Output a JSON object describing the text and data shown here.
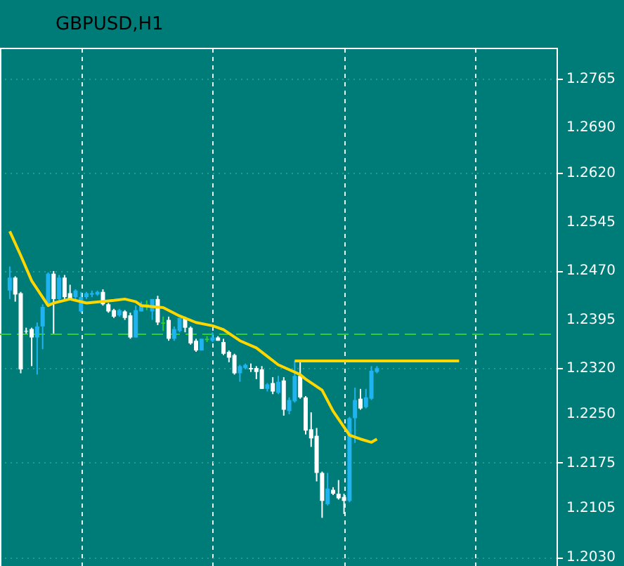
{
  "chart_data": {
    "type": "candlestick",
    "title": "GBPUSD,H1",
    "categories": [
      null,
      null,
      null,
      null,
      null,
      null,
      null,
      null,
      null,
      null,
      null,
      null,
      null,
      null,
      null,
      null,
      null,
      null,
      null,
      null,
      null,
      null,
      null,
      null,
      null,
      null,
      null,
      null,
      null,
      null,
      null,
      null,
      null,
      null,
      null,
      null,
      null,
      null,
      null,
      null,
      null,
      null,
      null,
      null,
      null,
      null,
      null,
      null,
      null,
      null,
      null,
      null,
      null,
      null,
      null,
      null,
      null,
      null,
      null,
      null,
      null,
      null,
      null,
      null,
      null,
      null,
      null,
      null,
      null,
      null,
      null,
      null,
      null,
      null,
      null,
      null,
      null,
      null,
      null,
      null,
      null,
      null,
      null,
      null,
      null,
      null,
      null,
      null,
      null,
      null,
      null,
      null,
      null,
      null,
      null,
      null,
      null,
      null,
      null
    ],
    "ylim": [
      1.2016,
      1.2812
    ],
    "yticks": [
      1.2765,
      {
        "value": 1.269,
        "label": "1.2690"
      },
      {
        "value": 1.262,
        "label": "1.2620"
      },
      1.2545,
      {
        "value": 1.247,
        "label": "1.2470"
      },
      1.2395,
      {
        "value": 1.232,
        "label": "1.2320"
      },
      {
        "value": 1.225,
        "label": "1.2250"
      },
      1.2175,
      1.2105,
      {
        "value": 1.203,
        "label": "1.2030"
      }
    ],
    "grid": true,
    "tick_labels": "y",
    "ref_lines": [
      {
        "axis": "y",
        "value": 1.2372,
        "color": "#32cd32",
        "line_style": "dashed"
      }
    ],
    "series": [
      {
        "ohlc": [
          [
            1.2439,
            1.2476,
            1.2426,
            1.2459
          ],
          [
            1.2459,
            1.2461,
            1.2422,
            1.2433
          ],
          [
            1.2435,
            1.2437,
            1.2312,
            1.2318
          ],
          [
            1.2377,
            1.2382,
            1.2373,
            1.2376
          ],
          [
            1.238,
            1.2382,
            1.2323,
            1.2367
          ],
          [
            1.2367,
            1.239,
            1.231,
            1.2384
          ],
          [
            1.2384,
            1.2418,
            1.2349,
            1.2414
          ],
          [
            1.2416,
            1.2467,
            1.2414,
            1.2465
          ],
          [
            1.2465,
            1.2469,
            1.2373,
            1.2426
          ],
          [
            1.2426,
            1.2463,
            1.2424,
            1.2459
          ],
          [
            1.2459,
            1.2463,
            1.2426,
            1.2429
          ],
          [
            1.2435,
            1.2448,
            1.2424,
            1.2426
          ],
          [
            1.2429,
            1.2441,
            1.2426,
            1.2439
          ],
          [
            1.2407,
            1.2437,
            1.2405,
            1.2429
          ],
          [
            1.2429,
            1.2437,
            1.2426,
            1.2435
          ],
          [
            1.2433,
            1.2439,
            1.2429,
            1.2435
          ],
          [
            1.2433,
            1.2439,
            1.2431,
            1.2437
          ],
          [
            1.2437,
            1.2441,
            1.2416,
            1.2418
          ],
          [
            1.2418,
            1.242,
            1.2405,
            1.2407
          ],
          [
            1.2409,
            1.2411,
            1.2397,
            1.2399
          ],
          [
            1.2401,
            1.2411,
            1.2399,
            1.2409
          ],
          [
            1.2407,
            1.2409,
            1.2394,
            1.2397
          ],
          [
            1.2401,
            1.2405,
            1.2365,
            1.2367
          ],
          [
            1.2367,
            1.2416,
            1.2367,
            1.2409
          ],
          [
            1.2407,
            1.2422,
            1.2407,
            1.2418
          ],
          [
            1.2418,
            1.2424,
            1.2409,
            1.2416
          ],
          [
            1.2407,
            1.2426,
            1.2394,
            1.2426
          ],
          [
            1.2426,
            1.2431,
            1.2386,
            1.239
          ],
          [
            1.239,
            1.2399,
            1.2377,
            1.2388
          ],
          [
            1.2394,
            1.2399,
            1.2362,
            1.2365
          ],
          [
            1.2365,
            1.2384,
            1.2362,
            1.238
          ],
          [
            1.2377,
            1.2397,
            1.2375,
            1.2397
          ],
          [
            1.2397,
            1.2399,
            1.2375,
            1.2382
          ],
          [
            1.2382,
            1.2384,
            1.2356,
            1.2358
          ],
          [
            1.2362,
            1.2365,
            1.2345,
            1.2347
          ],
          [
            1.2347,
            1.2365,
            1.2347,
            1.2365
          ],
          [
            1.2365,
            1.2369,
            1.236,
            1.2363
          ],
          [
            1.2362,
            1.2375,
            1.236,
            1.2367
          ],
          [
            1.2367,
            1.2369,
            1.2362,
            1.2362
          ],
          [
            1.236,
            1.2365,
            1.234,
            1.2342
          ],
          [
            1.2345,
            1.2347,
            1.2329,
            1.2336
          ],
          [
            1.234,
            1.2342,
            1.231,
            1.2312
          ],
          [
            1.2312,
            1.2325,
            1.2299,
            1.2323
          ],
          [
            1.232,
            1.2327,
            1.2318,
            1.2325
          ],
          [
            1.232,
            1.2327,
            1.2314,
            1.2318
          ],
          [
            1.232,
            1.2323,
            1.2303,
            1.2314
          ],
          [
            1.2318,
            1.2323,
            1.2288,
            1.2288
          ],
          [
            1.2288,
            1.2297,
            1.2284,
            1.2295
          ],
          [
            1.2297,
            1.2306,
            1.228,
            1.2284
          ],
          [
            1.2282,
            1.2308,
            1.228,
            1.2299
          ],
          [
            1.2301,
            1.2306,
            1.2247,
            1.2256
          ],
          [
            1.2254,
            1.2275,
            1.2249,
            1.2271
          ],
          [
            1.2269,
            1.2331,
            1.2267,
            1.2308
          ],
          [
            1.2308,
            1.2331,
            1.2273,
            1.2275
          ],
          [
            1.2275,
            1.2277,
            1.2218,
            1.2224
          ],
          [
            1.2226,
            1.2252,
            1.2199,
            1.2212
          ],
          [
            1.2216,
            1.2228,
            1.2146,
            1.2159
          ],
          [
            1.2159,
            1.2161,
            1.209,
            1.2116
          ],
          [
            1.2111,
            1.2159,
            1.2109,
            1.2135
          ],
          [
            1.2133,
            1.2137,
            1.2125,
            1.2127
          ],
          [
            1.2127,
            1.2148,
            1.2118,
            1.212
          ],
          [
            1.2122,
            1.2127,
            1.2096,
            1.2116
          ],
          [
            1.2116,
            1.2245,
            1.2114,
            1.2243
          ],
          [
            1.2243,
            1.229,
            1.2205,
            1.2271
          ],
          [
            1.2273,
            1.2288,
            1.2256,
            1.2258
          ],
          [
            1.226,
            1.2288,
            1.2258,
            1.2275
          ],
          [
            1.2273,
            1.2323,
            1.2271,
            1.2316
          ],
          [
            1.2314,
            1.2323,
            1.2312,
            1.232
          ],
          null,
          null,
          null,
          null,
          null,
          null,
          null,
          null,
          null,
          null,
          null,
          null,
          null,
          null,
          null,
          null,
          null,
          null,
          null,
          null,
          null,
          null,
          null,
          null,
          null,
          null,
          null,
          null,
          null,
          null,
          null
        ],
        "colors": [
          "#1fb4ef",
          "#ffffff",
          "#ffffff",
          "#ffffff",
          "#ffffff",
          "#1fb4ef",
          "#1fb4ef",
          "#1fb4ef",
          "#ffffff",
          "#1fb4ef",
          "#ffffff",
          "#ffffff",
          "#1fb4ef",
          "#1fb4ef",
          "#1fb4ef",
          "#1fb4ef",
          "#1fb4ef",
          "#ffffff",
          "#ffffff",
          "#ffffff",
          "#1fb4ef",
          "#ffffff",
          "#ffffff",
          "#1fb4ef",
          "#1fb4ef",
          "#32cd32",
          "#1fb4ef",
          "#ffffff",
          "#32cd32",
          "#ffffff",
          "#1fb4ef",
          "#1fb4ef",
          "#ffffff",
          "#ffffff",
          "#ffffff",
          "#1fb4ef",
          "#32cd32",
          "#1fb4ef",
          "#ffffff",
          "#ffffff",
          "#ffffff",
          "#ffffff",
          "#1fb4ef",
          "#1fb4ef",
          "#ffffff",
          "#ffffff",
          "#ffffff",
          "#1fb4ef",
          "#ffffff",
          "#1fb4ef",
          "#ffffff",
          "#1fb4ef",
          "#1fb4ef",
          "#ffffff",
          "#ffffff",
          "#ffffff",
          "#ffffff",
          "#ffffff",
          "#1fb4ef",
          "#ffffff",
          "#ffffff",
          "#ffffff",
          "#1fb4ef",
          "#1fb4ef",
          "#ffffff",
          "#1fb4ef",
          "#1fb4ef",
          "#1fb4ef",
          null,
          null,
          null,
          null,
          null,
          null,
          null,
          null,
          null,
          null,
          null,
          null,
          null,
          null,
          null,
          null,
          null,
          null,
          null,
          null,
          null,
          null,
          null,
          null,
          null,
          null,
          null,
          null,
          null,
          null,
          null
        ]
      },
      {
        "type": "line",
        "color": "#ffd700",
        "values": [
          1.253,
          null,
          1.2493,
          null,
          1.2454,
          null,
          null,
          1.2416,
          1.242,
          null,
          null,
          1.2426,
          null,
          null,
          1.242,
          null,
          null,
          null,
          null,
          1.2424,
          null,
          1.2426,
          null,
          1.2422,
          1.2416,
          null,
          null,
          null,
          1.2413,
          null,
          null,
          1.24,
          null,
          null,
          1.239,
          null,
          null,
          1.2385,
          null,
          1.2379,
          null,
          null,
          1.2362,
          null,
          null,
          1.2351,
          null,
          null,
          null,
          1.2325,
          null,
          null,
          null,
          1.231,
          1.2303,
          null,
          null,
          1.2286,
          null,
          1.2254,
          null,
          null,
          1.2217,
          null,
          1.2211,
          null,
          1.2206,
          1.2211,
          null,
          null,
          null,
          null,
          null,
          null,
          null,
          null,
          null,
          null,
          null,
          null,
          null,
          null,
          null,
          null,
          null,
          null,
          null,
          null,
          null,
          null,
          null,
          null,
          null,
          null,
          null,
          null,
          null,
          null,
          null
        ]
      },
      {
        "type": "line",
        "color": "#ffd700",
        "values": [
          null,
          null,
          null,
          null,
          null,
          null,
          null,
          null,
          null,
          null,
          null,
          null,
          null,
          null,
          null,
          null,
          null,
          null,
          null,
          null,
          null,
          null,
          null,
          null,
          null,
          null,
          null,
          null,
          null,
          null,
          null,
          null,
          null,
          null,
          null,
          null,
          null,
          null,
          null,
          null,
          null,
          null,
          null,
          null,
          null,
          null,
          null,
          null,
          null,
          null,
          null,
          null,
          1.2331,
          null,
          null,
          null,
          null,
          null,
          null,
          null,
          null,
          null,
          null,
          null,
          null,
          null,
          null,
          null,
          null,
          null,
          null,
          null,
          null,
          null,
          null,
          null,
          null,
          null,
          null,
          null,
          null,
          null,
          1.2331,
          null,
          null,
          null,
          null,
          null,
          null,
          null,
          null,
          null,
          null,
          null,
          null,
          null,
          null,
          null,
          null
        ]
      }
    ]
  }
}
